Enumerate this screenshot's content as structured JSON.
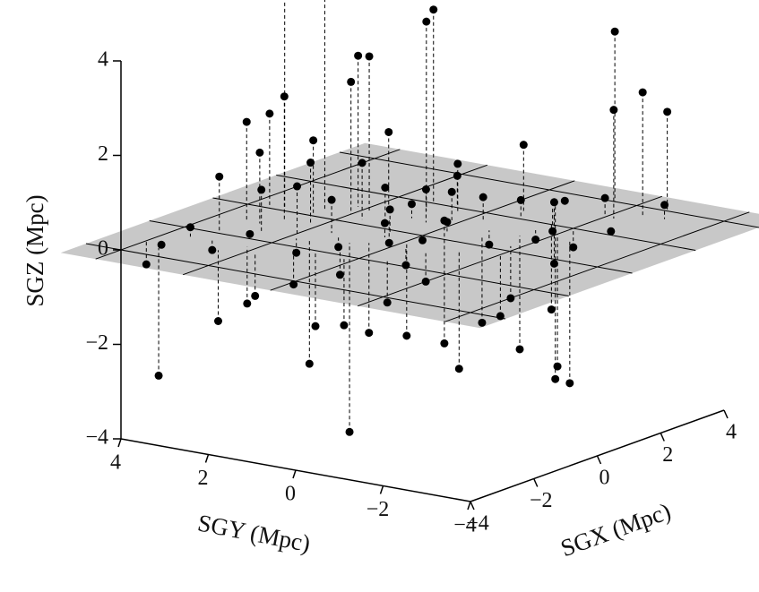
{
  "chart_data": {
    "type": "scatter3d",
    "xlabel": "SGX (Mpc)",
    "ylabel": "SGY (Mpc)",
    "zlabel": "SGZ (Mpc)",
    "xlim": [
      -4,
      4
    ],
    "ylim": [
      -4,
      4
    ],
    "zlim": [
      -4,
      4
    ],
    "xticks": [
      {
        "value": -4,
        "label": "−4"
      },
      {
        "value": -2,
        "label": "−2"
      },
      0,
      2,
      4
    ],
    "yticks": [
      {
        "value": -4,
        "label": "−4"
      },
      {
        "value": -2,
        "label": "−2"
      },
      0,
      2,
      4
    ],
    "zticks": [
      {
        "value": -4,
        "label": "−4"
      },
      {
        "value": -2,
        "label": "−2"
      },
      0,
      2,
      4
    ],
    "color": "#000000",
    "plane_color": "#c8c8c8",
    "x": [
      0.5,
      0.2,
      1.5,
      2.0,
      4.0,
      3.5,
      3.0,
      4.0,
      0.8,
      1.0,
      0.5,
      -0.5,
      0.0,
      -1,
      2.5,
      -2,
      -1,
      0,
      1,
      -0.5,
      0.3,
      -1.2,
      -1.5,
      0.2,
      0.8,
      1.2,
      -0.2,
      1.5,
      2,
      2.5,
      3,
      3.5,
      -2.5,
      -3,
      -3.2,
      -2.5,
      -2,
      -1.5,
      -1,
      0,
      0.5,
      1,
      1.5,
      2,
      2.5,
      -0.5,
      0,
      -0.8,
      -1.5,
      -2,
      -2.5,
      -3,
      -3.5,
      -1.5,
      -2,
      -1,
      -0.5,
      0,
      -1.2,
      0.5,
      1,
      1.5,
      1.2,
      -0.5,
      2,
      2.5,
      3.5,
      3,
      -0.3,
      0.3,
      -1.8,
      -2.2,
      1.8,
      2.2,
      -0.8,
      0.6,
      3.8,
      -1,
      0.9,
      -2.8
    ],
    "y": [
      2.6,
      3.3,
      1.0,
      1.2,
      -1.5,
      -2.5,
      -2.2,
      -2.7,
      1.8,
      2.2,
      2.0,
      2.8,
      3.5,
      3.3,
      -0.5,
      3.2,
      3,
      2.5,
      1.5,
      2.2,
      1.6,
      2.0,
      2.6,
      1.0,
      0.5,
      0.2,
      0.6,
      -0.3,
      -0.8,
      -1.2,
      -2,
      -3,
      3.5,
      3.8,
      4,
      3,
      2.5,
      1.8,
      1.2,
      0,
      -0.2,
      -0.8,
      -1.5,
      -2,
      -2.5,
      0.5,
      -0.5,
      -0.2,
      0.8,
      1.5,
      2.2,
      2.5,
      3.5,
      1.5,
      1,
      0.5,
      0,
      -0.5,
      0.8,
      -1,
      -1.5,
      -2,
      -2.5,
      -1.2,
      -1.5,
      -1.2,
      -0.5,
      -0.8,
      -2,
      -1.8,
      -0.5,
      0.2,
      0.5,
      0.8,
      1.5,
      1.2,
      -0.5,
      -0.8,
      0.9,
      1.8
    ],
    "z": [
      5.0,
      4.6,
      4.0,
      4.1,
      3.6,
      2.6,
      2.3,
      2.1,
      3.3,
      3.2,
      2.8,
      2.6,
      2.0,
      2.1,
      1.4,
      1.2,
      1.5,
      1.6,
      1.7,
      1.3,
      1.2,
      1.0,
      0.9,
      0.8,
      0.7,
      0.6,
      0.5,
      0.5,
      0.4,
      0.3,
      0.4,
      0.3,
      0.2,
      -0.1,
      -0.5,
      -0.2,
      0.1,
      -0.3,
      -0.2,
      -0.1,
      0.2,
      -0.3,
      -0.2,
      -0.4,
      -0.1,
      0.3,
      0.4,
      -0.4,
      -0.6,
      -0.8,
      -1.2,
      -1.5,
      -2.7,
      -2.6,
      -1.6,
      -1.9,
      -2.0,
      -2.2,
      -4.0,
      -1.8,
      -2.4,
      -2.8,
      -3.0,
      -2.5,
      -1.8,
      -1.0,
      -3.8,
      -0.5,
      -1.3,
      -1.1,
      -0.9,
      -1.4,
      1.0,
      0.6,
      0.7,
      -0.5,
      -0.1,
      -0.6,
      0.3,
      -0.9
    ]
  }
}
